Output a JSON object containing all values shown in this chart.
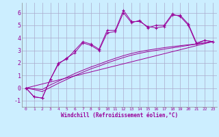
{
  "xlabel": "Windchill (Refroidissement éolien,°C)",
  "background_color": "#cceeff",
  "grid_color": "#aaaacc",
  "line_color": "#990099",
  "xlim": [
    -0.5,
    23.5
  ],
  "ylim": [
    -1.5,
    6.8
  ],
  "yticks": [
    -1,
    0,
    1,
    2,
    3,
    4,
    5,
    6
  ],
  "xticks": [
    0,
    1,
    2,
    3,
    4,
    5,
    6,
    7,
    8,
    9,
    10,
    11,
    12,
    13,
    14,
    15,
    16,
    17,
    18,
    19,
    20,
    21,
    22,
    23
  ],
  "y_main1": [
    0,
    -0.7,
    -0.8,
    0.7,
    2.0,
    2.3,
    3.0,
    3.7,
    3.5,
    3.1,
    4.6,
    4.6,
    6.2,
    5.3,
    5.3,
    4.9,
    4.8,
    4.9,
    5.8,
    5.8,
    5.1,
    3.6,
    3.8,
    3.7
  ],
  "y_main2": [
    0,
    -0.7,
    -0.8,
    0.7,
    1.9,
    2.4,
    2.8,
    3.6,
    3.4,
    3.0,
    4.4,
    4.5,
    6.0,
    5.2,
    5.4,
    4.8,
    5.0,
    5.0,
    5.9,
    5.7,
    5.0,
    3.5,
    3.8,
    3.7
  ],
  "y_smooth1": [
    0,
    -0.05,
    -0.12,
    0.25,
    0.55,
    0.85,
    1.15,
    1.42,
    1.68,
    1.9,
    2.15,
    2.37,
    2.58,
    2.76,
    2.9,
    3.02,
    3.12,
    3.22,
    3.3,
    3.38,
    3.45,
    3.52,
    3.6,
    3.7
  ],
  "y_smooth2": [
    0,
    -0.12,
    -0.28,
    0.05,
    0.38,
    0.68,
    0.98,
    1.26,
    1.53,
    1.75,
    2.0,
    2.22,
    2.43,
    2.62,
    2.77,
    2.9,
    3.0,
    3.1,
    3.2,
    3.3,
    3.4,
    3.5,
    3.6,
    3.7
  ],
  "y_linear": [
    0,
    0.161,
    0.322,
    0.483,
    0.643,
    0.804,
    0.965,
    1.126,
    1.287,
    1.448,
    1.609,
    1.77,
    1.93,
    2.091,
    2.252,
    2.413,
    2.574,
    2.735,
    2.896,
    3.057,
    3.217,
    3.378,
    3.539,
    3.7
  ]
}
